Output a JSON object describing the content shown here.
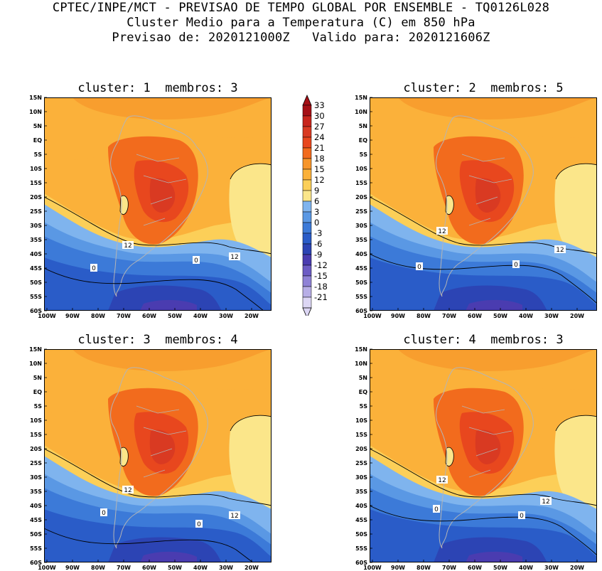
{
  "title": {
    "line1": "CPTEC/INPE/MCT - PREVISAO DE TEMPO GLOBAL POR ENSEMBLE - TQ0126L028",
    "line2": "Cluster Medio para a Temperatura (C) em 850 hPa",
    "line3": "Previsao de: 2020121000Z   Valido para: 2020121606Z"
  },
  "y_ticks": [
    "15N",
    "10N",
    "5N",
    "EQ",
    "5S",
    "10S",
    "15S",
    "20S",
    "25S",
    "30S",
    "35S",
    "40S",
    "45S",
    "50S",
    "55S",
    "60S"
  ],
  "x_ticks": [
    "100W",
    "90W",
    "80W",
    "70W",
    "60W",
    "50W",
    "40W",
    "30W",
    "20W"
  ],
  "colorbar": {
    "levels": [
      "33",
      "30",
      "27",
      "24",
      "21",
      "18",
      "15",
      "12",
      "9",
      "6",
      "3",
      "0",
      "-3",
      "-6",
      "-9",
      "-12",
      "-15",
      "-18",
      "-21"
    ],
    "colors": [
      "#a50f15",
      "#c8251c",
      "#d93a22",
      "#e8471e",
      "#f26b1d",
      "#f7952a",
      "#fbb13a",
      "#fccf58",
      "#fbe68a",
      "#7fb4ee",
      "#5a98e4",
      "#3c7ad8",
      "#2a5cc8",
      "#2c44b4",
      "#4a3cb0",
      "#6c5cc4",
      "#8f82d6",
      "#b7aee6",
      "#dcd6f4"
    ]
  },
  "panels": [
    {
      "title": "cluster: 1  membros: 3",
      "labels": [
        {
          "text": "12"
        },
        {
          "text": "12"
        },
        {
          "text": "0"
        },
        {
          "text": "0"
        }
      ]
    },
    {
      "title": "cluster: 2  membros: 5",
      "labels": [
        {
          "text": "12"
        },
        {
          "text": "12"
        },
        {
          "text": "0"
        },
        {
          "text": "0"
        }
      ]
    },
    {
      "title": "cluster: 3  membros: 4",
      "labels": [
        {
          "text": "12"
        },
        {
          "text": "12"
        },
        {
          "text": "0"
        },
        {
          "text": "0"
        }
      ]
    },
    {
      "title": "cluster: 4  membros: 3",
      "labels": [
        {
          "text": "12"
        },
        {
          "text": "12"
        },
        {
          "text": "0"
        },
        {
          "text": "0"
        }
      ]
    }
  ]
}
